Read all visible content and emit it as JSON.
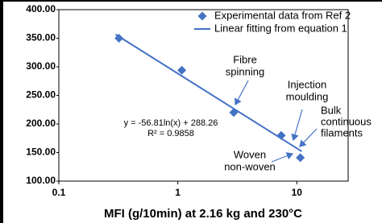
{
  "chart_data": {
    "type": "scatter",
    "xlabel": "MFI (g/10min) at 2.16 kg and 230°C",
    "xscale": "log",
    "xlim": [
      0.1,
      27
    ],
    "xticks": [
      0.1,
      1,
      10
    ],
    "ylim": [
      100,
      400
    ],
    "yticks": [
      {
        "value": 100,
        "label": "100.00"
      },
      {
        "value": 150,
        "label": "150.00"
      },
      {
        "value": 200,
        "label": "200.00"
      },
      {
        "value": 250,
        "label": "250.00"
      },
      {
        "value": 300,
        "label": "300.00"
      },
      {
        "value": 350,
        "label": "350.00"
      },
      {
        "value": 400,
        "label": "400.00"
      }
    ],
    "series": [
      {
        "name": "Experimental data from Ref 2",
        "color": "#4472c4",
        "marker": "diamond",
        "x": [
          0.32,
          1.08,
          2.95,
          7.4,
          10.7
        ],
        "values": [
          350,
          294,
          220,
          180,
          141
        ]
      },
      {
        "name": "Linear fitting from equation 1",
        "color": "#4472c4",
        "marker": "line",
        "x": [
          0.3,
          11
        ],
        "values": [
          356.7,
          152.0
        ]
      }
    ],
    "legend": "upper-right",
    "annotations": [
      {
        "lines": [
          "y = -56.81ln(x) + 288.26",
          "R² = 0.9858"
        ]
      },
      {
        "lines": [
          "Fibre",
          "spinning"
        ]
      },
      {
        "lines": [
          "Injection",
          "moulding"
        ]
      },
      {
        "lines": [
          "Bulk",
          "continuous",
          "filaments"
        ]
      },
      {
        "lines": [
          "Woven",
          "non-woven"
        ]
      }
    ]
  }
}
